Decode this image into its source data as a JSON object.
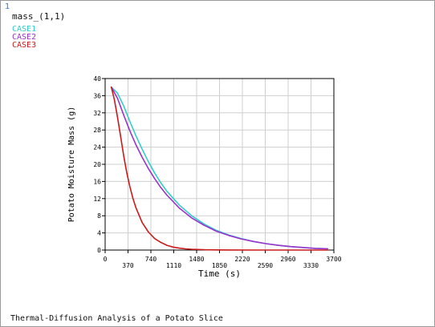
{
  "window": {
    "window_number": "1",
    "plot_variable": "mass_(1,1)",
    "footer_title": "Thermal-Diffusion Analysis of a Potato Slice"
  },
  "colors": {
    "axis": "#000000",
    "grid": "#cfcfcf",
    "plot_background": "#ffffff"
  },
  "chart_data": {
    "type": "line",
    "title": "",
    "xlabel": "Time (s)",
    "ylabel": "Potato Moisture Mass (g)",
    "xlim": [
      0,
      3700
    ],
    "ylim": [
      0,
      40
    ],
    "x_ticks": [
      0,
      370,
      740,
      1110,
      1480,
      1850,
      2220,
      2590,
      2960,
      3330,
      3700
    ],
    "y_ticks": [
      0,
      4,
      8,
      12,
      16,
      20,
      24,
      28,
      32,
      36,
      40
    ],
    "grid": true,
    "legend_position": "top-left",
    "series": [
      {
        "name": "CASE1",
        "color": "#33cccc",
        "x": [
          100,
          200,
          300,
          400,
          500,
          600,
          700,
          800,
          900,
          1000,
          1200,
          1400,
          1600,
          1800,
          2000,
          2200,
          2400,
          2600,
          2800,
          3000,
          3200,
          3400,
          3600
        ],
        "y": [
          38.0,
          36.6,
          33.6,
          30.0,
          26.6,
          23.5,
          20.6,
          18.0,
          15.7,
          13.7,
          10.5,
          8.0,
          6.1,
          4.6,
          3.5,
          2.7,
          2.0,
          1.5,
          1.1,
          0.8,
          0.6,
          0.4,
          0.3
        ]
      },
      {
        "name": "CASE2",
        "color": "#9933cc",
        "x": [
          100,
          200,
          300,
          400,
          500,
          600,
          700,
          800,
          900,
          1000,
          1200,
          1400,
          1600,
          1800,
          2000,
          2200,
          2400,
          2600,
          2800,
          3000,
          3200,
          3400,
          3600
        ],
        "y": [
          38.0,
          35.4,
          31.5,
          27.8,
          24.5,
          21.6,
          19.0,
          16.7,
          14.6,
          12.8,
          9.8,
          7.5,
          5.8,
          4.4,
          3.4,
          2.6,
          2.0,
          1.5,
          1.1,
          0.8,
          0.6,
          0.4,
          0.3
        ]
      },
      {
        "name": "CASE3",
        "color": "#cc1a1a",
        "x": [
          100,
          150,
          200,
          250,
          300,
          350,
          400,
          450,
          500,
          600,
          700,
          800,
          900,
          1000,
          1100,
          1200,
          1300,
          1400,
          1600,
          1800,
          2000,
          2500,
          3000,
          3600
        ],
        "y": [
          38.0,
          35.0,
          31.0,
          26.5,
          22.0,
          18.0,
          14.8,
          12.0,
          9.8,
          6.4,
          4.2,
          2.7,
          1.8,
          1.1,
          0.7,
          0.45,
          0.28,
          0.18,
          0.07,
          0.03,
          0.01,
          0.0,
          0.0,
          0.0
        ]
      }
    ]
  }
}
